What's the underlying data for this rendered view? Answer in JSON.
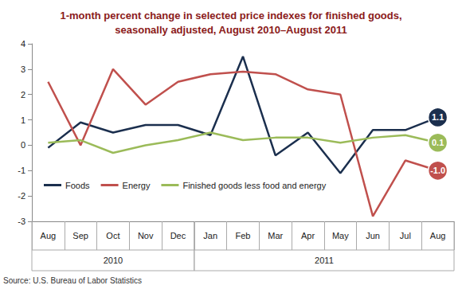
{
  "chart_data": {
    "type": "line",
    "title": "1-month percent change in selected price indexes for finished goods,\nseasonally adjusted, August 2010–August 2011",
    "source": "Source: U.S. Bureau of Labor Statistics",
    "categories": [
      "Aug",
      "Sep",
      "Oct",
      "Nov",
      "Dec",
      "Jan",
      "Feb",
      "Mar",
      "Apr",
      "May",
      "Jun",
      "Jul",
      "Aug"
    ],
    "category_groups": [
      "2010",
      "2010",
      "2010",
      "2010",
      "2010",
      "2011",
      "2011",
      "2011",
      "2011",
      "2011",
      "2011",
      "2011",
      "2011"
    ],
    "series": [
      {
        "name": "Foods",
        "color": "#1b2f4e",
        "values": [
          -0.1,
          0.9,
          0.5,
          0.8,
          0.8,
          0.4,
          3.5,
          -0.4,
          0.5,
          -1.1,
          0.6,
          0.6,
          1.1
        ],
        "value_labels": [
          null,
          null,
          null,
          null,
          null,
          null,
          null,
          null,
          null,
          null,
          null,
          null,
          "1.1"
        ]
      },
      {
        "name": "Energy",
        "color": "#c0504d",
        "values": [
          2.5,
          0.0,
          3.0,
          1.6,
          2.5,
          2.8,
          2.9,
          2.8,
          2.2,
          2.0,
          -2.8,
          -0.6,
          -1.0
        ],
        "value_labels": [
          null,
          null,
          null,
          null,
          null,
          null,
          null,
          null,
          null,
          null,
          null,
          null,
          "-1.0"
        ]
      },
      {
        "name": "Finished goods less food and energy",
        "color": "#9bbb59",
        "values": [
          0.1,
          0.2,
          -0.3,
          0.0,
          0.2,
          0.5,
          0.2,
          0.3,
          0.3,
          0.1,
          0.3,
          0.4,
          0.1
        ],
        "value_labels": [
          null,
          null,
          null,
          null,
          null,
          null,
          null,
          null,
          null,
          null,
          null,
          null,
          "0.1"
        ]
      }
    ],
    "ylim": [
      -3,
      4
    ],
    "yticks": [
      -3,
      -2,
      -1,
      0,
      1,
      2,
      3,
      4
    ],
    "grid": false,
    "legend": "lower left"
  }
}
